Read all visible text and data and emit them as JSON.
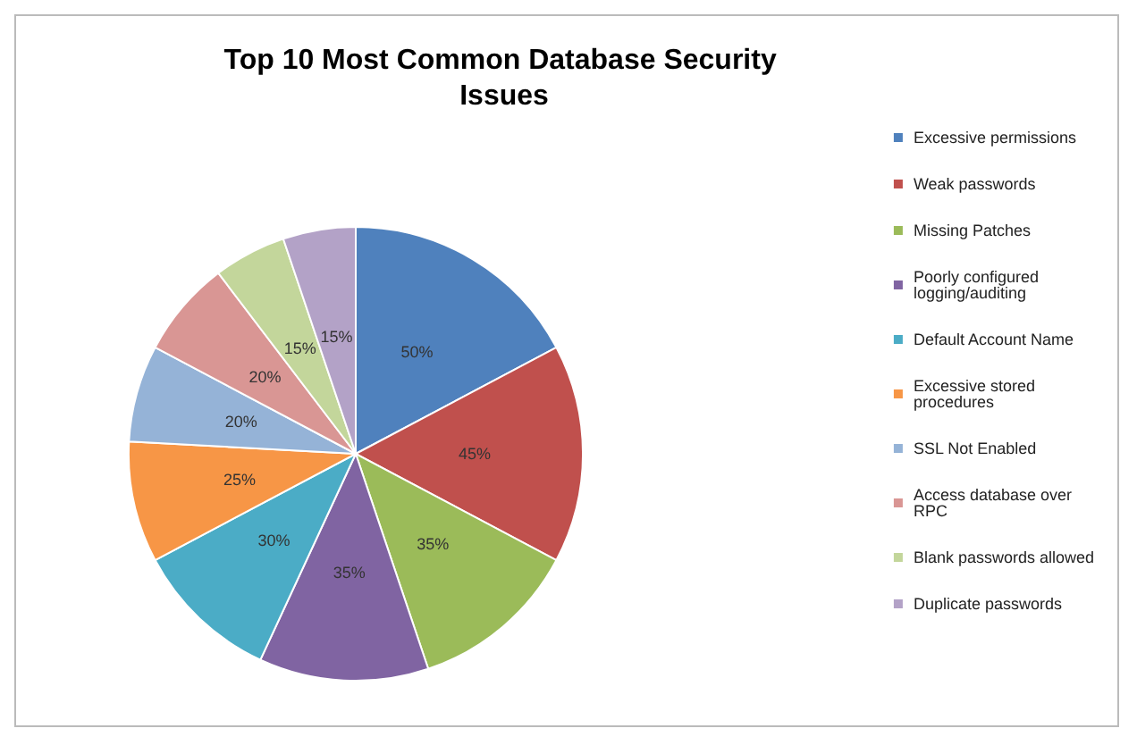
{
  "chart_data": {
    "type": "pie",
    "title": "Top 10 Most Common Database Security Issues",
    "categories": [
      "Excessive permissions",
      "Weak passwords",
      "Missing Patches",
      "Poorly configured logging/auditing",
      "Default Account Name",
      "Excessive stored procedures",
      "SSL Not Enabled",
      "Access database over RPC",
      "Blank passwords allowed",
      "Duplicate passwords"
    ],
    "values": [
      50,
      45,
      35,
      35,
      30,
      25,
      20,
      20,
      15,
      15
    ],
    "value_labels": [
      "50%",
      "45%",
      "35%",
      "35%",
      "30%",
      "25%",
      "20%",
      "20%",
      "15%",
      "15%"
    ],
    "colors": [
      "#4f81bd",
      "#c0504d",
      "#9bbb59",
      "#8064a2",
      "#4bacc6",
      "#f79646",
      "#95b3d7",
      "#d99694",
      "#c3d69b",
      "#b3a2c7"
    ],
    "legend": "right"
  }
}
